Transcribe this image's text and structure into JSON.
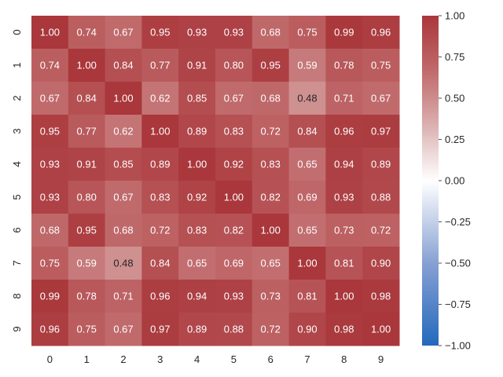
{
  "chart_data": {
    "type": "heatmap",
    "row_labels": [
      "0",
      "1",
      "2",
      "3",
      "4",
      "5",
      "6",
      "7",
      "8",
      "9"
    ],
    "col_labels": [
      "0",
      "1",
      "2",
      "3",
      "4",
      "5",
      "6",
      "7",
      "8",
      "9"
    ],
    "values": [
      [
        1.0,
        0.74,
        0.67,
        0.95,
        0.93,
        0.93,
        0.68,
        0.75,
        0.99,
        0.96
      ],
      [
        0.74,
        1.0,
        0.84,
        0.77,
        0.91,
        0.8,
        0.95,
        0.59,
        0.78,
        0.75
      ],
      [
        0.67,
        0.84,
        1.0,
        0.62,
        0.85,
        0.67,
        0.68,
        0.48,
        0.71,
        0.67
      ],
      [
        0.95,
        0.77,
        0.62,
        1.0,
        0.89,
        0.83,
        0.72,
        0.84,
        0.96,
        0.97
      ],
      [
        0.93,
        0.91,
        0.85,
        0.89,
        1.0,
        0.92,
        0.83,
        0.65,
        0.94,
        0.89
      ],
      [
        0.93,
        0.8,
        0.67,
        0.83,
        0.92,
        1.0,
        0.82,
        0.69,
        0.93,
        0.88
      ],
      [
        0.68,
        0.95,
        0.68,
        0.72,
        0.83,
        0.82,
        1.0,
        0.65,
        0.73,
        0.72
      ],
      [
        0.75,
        0.59,
        0.48,
        0.84,
        0.65,
        0.69,
        0.65,
        1.0,
        0.81,
        0.9
      ],
      [
        0.99,
        0.78,
        0.71,
        0.96,
        0.94,
        0.93,
        0.73,
        0.81,
        1.0,
        0.98
      ],
      [
        0.96,
        0.75,
        0.67,
        0.97,
        0.89,
        0.88,
        0.72,
        0.9,
        0.98,
        1.0
      ]
    ],
    "value_format": "2 decimals",
    "colormap": "vlag",
    "vmin": -1.0,
    "vmax": 1.0,
    "colorbar": {
      "ticks": [
        1.0,
        0.75,
        0.5,
        0.25,
        0.0,
        -0.25,
        -0.5,
        -0.75,
        -1.0
      ],
      "tick_labels": [
        "1.00",
        "0.75",
        "0.50",
        "0.25",
        "0.00",
        "−0.25",
        "−0.50",
        "−0.75",
        "−1.00"
      ]
    },
    "colors": {
      "low": "#2369bd",
      "mid": "#ffffff",
      "high": "#a9373b"
    },
    "title": "",
    "xlabel": "",
    "ylabel": ""
  }
}
